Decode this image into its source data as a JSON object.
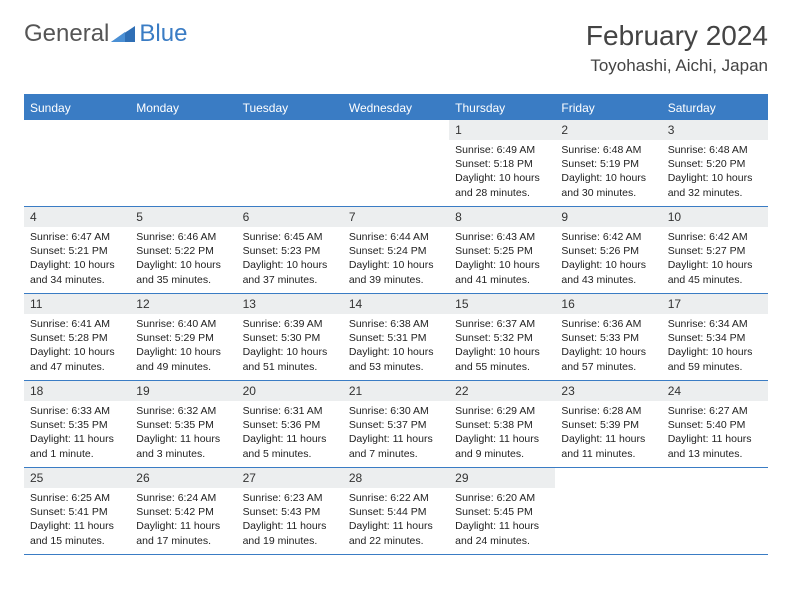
{
  "logo": {
    "part1": "General",
    "part2": "Blue"
  },
  "title": "February 2024",
  "location": "Toyohashi, Aichi, Japan",
  "colors": {
    "accent": "#3a7cc4",
    "daynum_bg": "#eceeef",
    "text": "#333333",
    "body_text": "#222222",
    "bg": "#ffffff"
  },
  "weekdays": [
    "Sunday",
    "Monday",
    "Tuesday",
    "Wednesday",
    "Thursday",
    "Friday",
    "Saturday"
  ],
  "weeks": [
    [
      {
        "empty": true
      },
      {
        "empty": true
      },
      {
        "empty": true
      },
      {
        "empty": true
      },
      {
        "num": "1",
        "sunrise": "Sunrise: 6:49 AM",
        "sunset": "Sunset: 5:18 PM",
        "daylight": "Daylight: 10 hours and 28 minutes."
      },
      {
        "num": "2",
        "sunrise": "Sunrise: 6:48 AM",
        "sunset": "Sunset: 5:19 PM",
        "daylight": "Daylight: 10 hours and 30 minutes."
      },
      {
        "num": "3",
        "sunrise": "Sunrise: 6:48 AM",
        "sunset": "Sunset: 5:20 PM",
        "daylight": "Daylight: 10 hours and 32 minutes."
      }
    ],
    [
      {
        "num": "4",
        "sunrise": "Sunrise: 6:47 AM",
        "sunset": "Sunset: 5:21 PM",
        "daylight": "Daylight: 10 hours and 34 minutes."
      },
      {
        "num": "5",
        "sunrise": "Sunrise: 6:46 AM",
        "sunset": "Sunset: 5:22 PM",
        "daylight": "Daylight: 10 hours and 35 minutes."
      },
      {
        "num": "6",
        "sunrise": "Sunrise: 6:45 AM",
        "sunset": "Sunset: 5:23 PM",
        "daylight": "Daylight: 10 hours and 37 minutes."
      },
      {
        "num": "7",
        "sunrise": "Sunrise: 6:44 AM",
        "sunset": "Sunset: 5:24 PM",
        "daylight": "Daylight: 10 hours and 39 minutes."
      },
      {
        "num": "8",
        "sunrise": "Sunrise: 6:43 AM",
        "sunset": "Sunset: 5:25 PM",
        "daylight": "Daylight: 10 hours and 41 minutes."
      },
      {
        "num": "9",
        "sunrise": "Sunrise: 6:42 AM",
        "sunset": "Sunset: 5:26 PM",
        "daylight": "Daylight: 10 hours and 43 minutes."
      },
      {
        "num": "10",
        "sunrise": "Sunrise: 6:42 AM",
        "sunset": "Sunset: 5:27 PM",
        "daylight": "Daylight: 10 hours and 45 minutes."
      }
    ],
    [
      {
        "num": "11",
        "sunrise": "Sunrise: 6:41 AM",
        "sunset": "Sunset: 5:28 PM",
        "daylight": "Daylight: 10 hours and 47 minutes."
      },
      {
        "num": "12",
        "sunrise": "Sunrise: 6:40 AM",
        "sunset": "Sunset: 5:29 PM",
        "daylight": "Daylight: 10 hours and 49 minutes."
      },
      {
        "num": "13",
        "sunrise": "Sunrise: 6:39 AM",
        "sunset": "Sunset: 5:30 PM",
        "daylight": "Daylight: 10 hours and 51 minutes."
      },
      {
        "num": "14",
        "sunrise": "Sunrise: 6:38 AM",
        "sunset": "Sunset: 5:31 PM",
        "daylight": "Daylight: 10 hours and 53 minutes."
      },
      {
        "num": "15",
        "sunrise": "Sunrise: 6:37 AM",
        "sunset": "Sunset: 5:32 PM",
        "daylight": "Daylight: 10 hours and 55 minutes."
      },
      {
        "num": "16",
        "sunrise": "Sunrise: 6:36 AM",
        "sunset": "Sunset: 5:33 PM",
        "daylight": "Daylight: 10 hours and 57 minutes."
      },
      {
        "num": "17",
        "sunrise": "Sunrise: 6:34 AM",
        "sunset": "Sunset: 5:34 PM",
        "daylight": "Daylight: 10 hours and 59 minutes."
      }
    ],
    [
      {
        "num": "18",
        "sunrise": "Sunrise: 6:33 AM",
        "sunset": "Sunset: 5:35 PM",
        "daylight": "Daylight: 11 hours and 1 minute."
      },
      {
        "num": "19",
        "sunrise": "Sunrise: 6:32 AM",
        "sunset": "Sunset: 5:35 PM",
        "daylight": "Daylight: 11 hours and 3 minutes."
      },
      {
        "num": "20",
        "sunrise": "Sunrise: 6:31 AM",
        "sunset": "Sunset: 5:36 PM",
        "daylight": "Daylight: 11 hours and 5 minutes."
      },
      {
        "num": "21",
        "sunrise": "Sunrise: 6:30 AM",
        "sunset": "Sunset: 5:37 PM",
        "daylight": "Daylight: 11 hours and 7 minutes."
      },
      {
        "num": "22",
        "sunrise": "Sunrise: 6:29 AM",
        "sunset": "Sunset: 5:38 PM",
        "daylight": "Daylight: 11 hours and 9 minutes."
      },
      {
        "num": "23",
        "sunrise": "Sunrise: 6:28 AM",
        "sunset": "Sunset: 5:39 PM",
        "daylight": "Daylight: 11 hours and 11 minutes."
      },
      {
        "num": "24",
        "sunrise": "Sunrise: 6:27 AM",
        "sunset": "Sunset: 5:40 PM",
        "daylight": "Daylight: 11 hours and 13 minutes."
      }
    ],
    [
      {
        "num": "25",
        "sunrise": "Sunrise: 6:25 AM",
        "sunset": "Sunset: 5:41 PM",
        "daylight": "Daylight: 11 hours and 15 minutes."
      },
      {
        "num": "26",
        "sunrise": "Sunrise: 6:24 AM",
        "sunset": "Sunset: 5:42 PM",
        "daylight": "Daylight: 11 hours and 17 minutes."
      },
      {
        "num": "27",
        "sunrise": "Sunrise: 6:23 AM",
        "sunset": "Sunset: 5:43 PM",
        "daylight": "Daylight: 11 hours and 19 minutes."
      },
      {
        "num": "28",
        "sunrise": "Sunrise: 6:22 AM",
        "sunset": "Sunset: 5:44 PM",
        "daylight": "Daylight: 11 hours and 22 minutes."
      },
      {
        "num": "29",
        "sunrise": "Sunrise: 6:20 AM",
        "sunset": "Sunset: 5:45 PM",
        "daylight": "Daylight: 11 hours and 24 minutes."
      },
      {
        "empty": true
      },
      {
        "empty": true
      }
    ]
  ]
}
